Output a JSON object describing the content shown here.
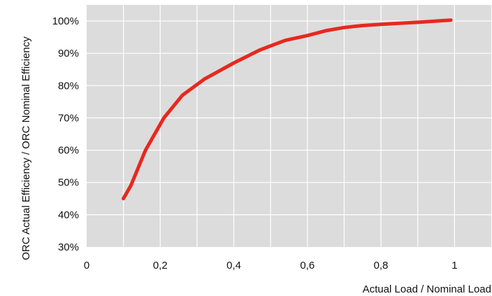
{
  "chart_data": {
    "type": "line",
    "xlabel": "Actual Load / Nominal Load",
    "ylabel": "ORC Actual Efficiency / ORC Nominal Efficiency",
    "xlim": [
      0,
      1.1
    ],
    "ylim": [
      30,
      105
    ],
    "x_ticks": [
      0,
      0.2,
      0.4,
      0.6,
      0.8,
      1
    ],
    "x_tick_labels": [
      "0",
      "0,2",
      "0,4",
      "0,6",
      "0,8",
      "1"
    ],
    "y_ticks": [
      30,
      40,
      50,
      60,
      70,
      80,
      90,
      100
    ],
    "y_tick_labels": [
      "30%",
      "40%",
      "50%",
      "60%",
      "70%",
      "80%",
      "90%",
      "100%"
    ],
    "grid": true,
    "colors": {
      "plot_background": "#dcdcdc",
      "grid": "#ffffff",
      "line": "#e8281e"
    },
    "series": [
      {
        "x": [
          0.1,
          0.12,
          0.16,
          0.21,
          0.26,
          0.32,
          0.4,
          0.47,
          0.54,
          0.6,
          0.65,
          0.7,
          0.75,
          0.8,
          0.85,
          0.9,
          0.95,
          0.99
        ],
        "values": [
          45,
          49,
          60,
          70,
          77,
          82,
          87,
          91,
          94,
          95.5,
          97,
          98,
          98.6,
          99,
          99.3,
          99.6,
          100,
          100.3
        ]
      }
    ]
  }
}
